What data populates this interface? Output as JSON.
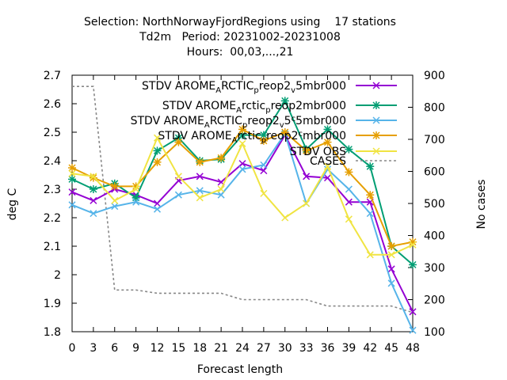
{
  "chart_data": {
    "type": "line",
    "title_lines": [
      "Selection: NorthNorwayFjordRegions using    17 stations",
      "Td2m   Period: 20231002-20231008",
      "Hours:  00,03,...,21"
    ],
    "xlabel": "Forecast length",
    "ylabel": "deg C",
    "y2label": "No cases",
    "x": [
      0,
      3,
      6,
      9,
      12,
      15,
      18,
      21,
      24,
      27,
      30,
      33,
      36,
      39,
      42,
      45,
      48
    ],
    "xlim": [
      0,
      48
    ],
    "ylim": [
      1.8,
      2.7
    ],
    "y2lim": [
      100,
      900
    ],
    "yticks": [
      "1.8",
      "1.9",
      "2",
      "2.1",
      "2.2",
      "2.3",
      "2.4",
      "2.5",
      "2.6",
      "2.7"
    ],
    "y2ticks": [
      "100",
      "200",
      "300",
      "400",
      "500",
      "600",
      "700",
      "800",
      "900"
    ],
    "legend_position": "top-right",
    "series": [
      {
        "name_parts": [
          [
            "STDV AROME",
            ""
          ],
          [
            "A",
            "sub"
          ],
          [
            "RCTIC",
            ""
          ],
          [
            "p",
            "sub"
          ],
          [
            "reop2",
            ""
          ],
          [
            "v",
            "sub"
          ],
          [
            "5mbr000",
            ""
          ]
        ],
        "color": "#9400d3",
        "marker": "x",
        "values": [
          2.29,
          2.26,
          2.3,
          2.28,
          2.25,
          2.33,
          2.345,
          2.325,
          2.39,
          2.365,
          2.49,
          2.345,
          2.34,
          2.255,
          2.255,
          2.02,
          1.87
        ]
      },
      {
        "name_parts": [
          [
            "STDV AROME",
            ""
          ],
          [
            "A",
            "sub"
          ],
          [
            "rctic",
            ""
          ],
          [
            "p",
            "sub"
          ],
          [
            "reop2mbr000",
            ""
          ]
        ],
        "color": "#009e73",
        "marker": "star",
        "values": [
          2.335,
          2.3,
          2.32,
          2.27,
          2.435,
          2.48,
          2.4,
          2.405,
          2.49,
          2.49,
          2.61,
          2.44,
          2.51,
          2.44,
          2.38,
          2.1,
          2.035
        ]
      },
      {
        "name_parts": [
          [
            "STDV AROME",
            ""
          ],
          [
            "A",
            "sub"
          ],
          [
            "RCTIC",
            ""
          ],
          [
            "p",
            "sub"
          ],
          [
            "reop2",
            ""
          ],
          [
            "v",
            "sub"
          ],
          [
            "5",
            ""
          ],
          [
            "c",
            "sup"
          ],
          [
            "5mbr000",
            ""
          ]
        ],
        "color": "#56b4e9",
        "marker": "x",
        "values": [
          2.245,
          2.215,
          2.24,
          2.255,
          2.23,
          2.28,
          2.295,
          2.28,
          2.37,
          2.385,
          2.495,
          2.25,
          2.37,
          2.3,
          2.215,
          1.97,
          1.805
        ]
      },
      {
        "name_parts": [
          [
            "STDV AROME",
            ""
          ],
          [
            "A",
            "sub"
          ],
          [
            "rctic",
            ""
          ],
          [
            "p",
            "sub"
          ],
          [
            "reop2",
            ""
          ],
          [
            "c",
            "sup"
          ],
          [
            "mbr000",
            ""
          ]
        ],
        "color": "#e69f00",
        "marker": "star",
        "values": [
          2.375,
          2.34,
          2.31,
          2.31,
          2.395,
          2.465,
          2.395,
          2.41,
          2.51,
          2.47,
          2.5,
          2.435,
          2.465,
          2.36,
          2.28,
          2.1,
          2.115
        ]
      },
      {
        "name_parts": [
          [
            "STDV OBS",
            ""
          ]
        ],
        "color": "#f0e442",
        "marker": "x",
        "values": [
          2.355,
          2.345,
          2.26,
          2.3,
          2.48,
          2.345,
          2.27,
          2.3,
          2.46,
          2.285,
          2.2,
          2.25,
          2.38,
          2.195,
          2.07,
          2.07,
          2.105
        ]
      }
    ],
    "cases": {
      "name": "CASES",
      "color": "#888888",
      "axis": "y2",
      "values": [
        865,
        865,
        230,
        230,
        220,
        220,
        220,
        220,
        200,
        200,
        200,
        200,
        180,
        180,
        180,
        180,
        160
      ]
    }
  }
}
